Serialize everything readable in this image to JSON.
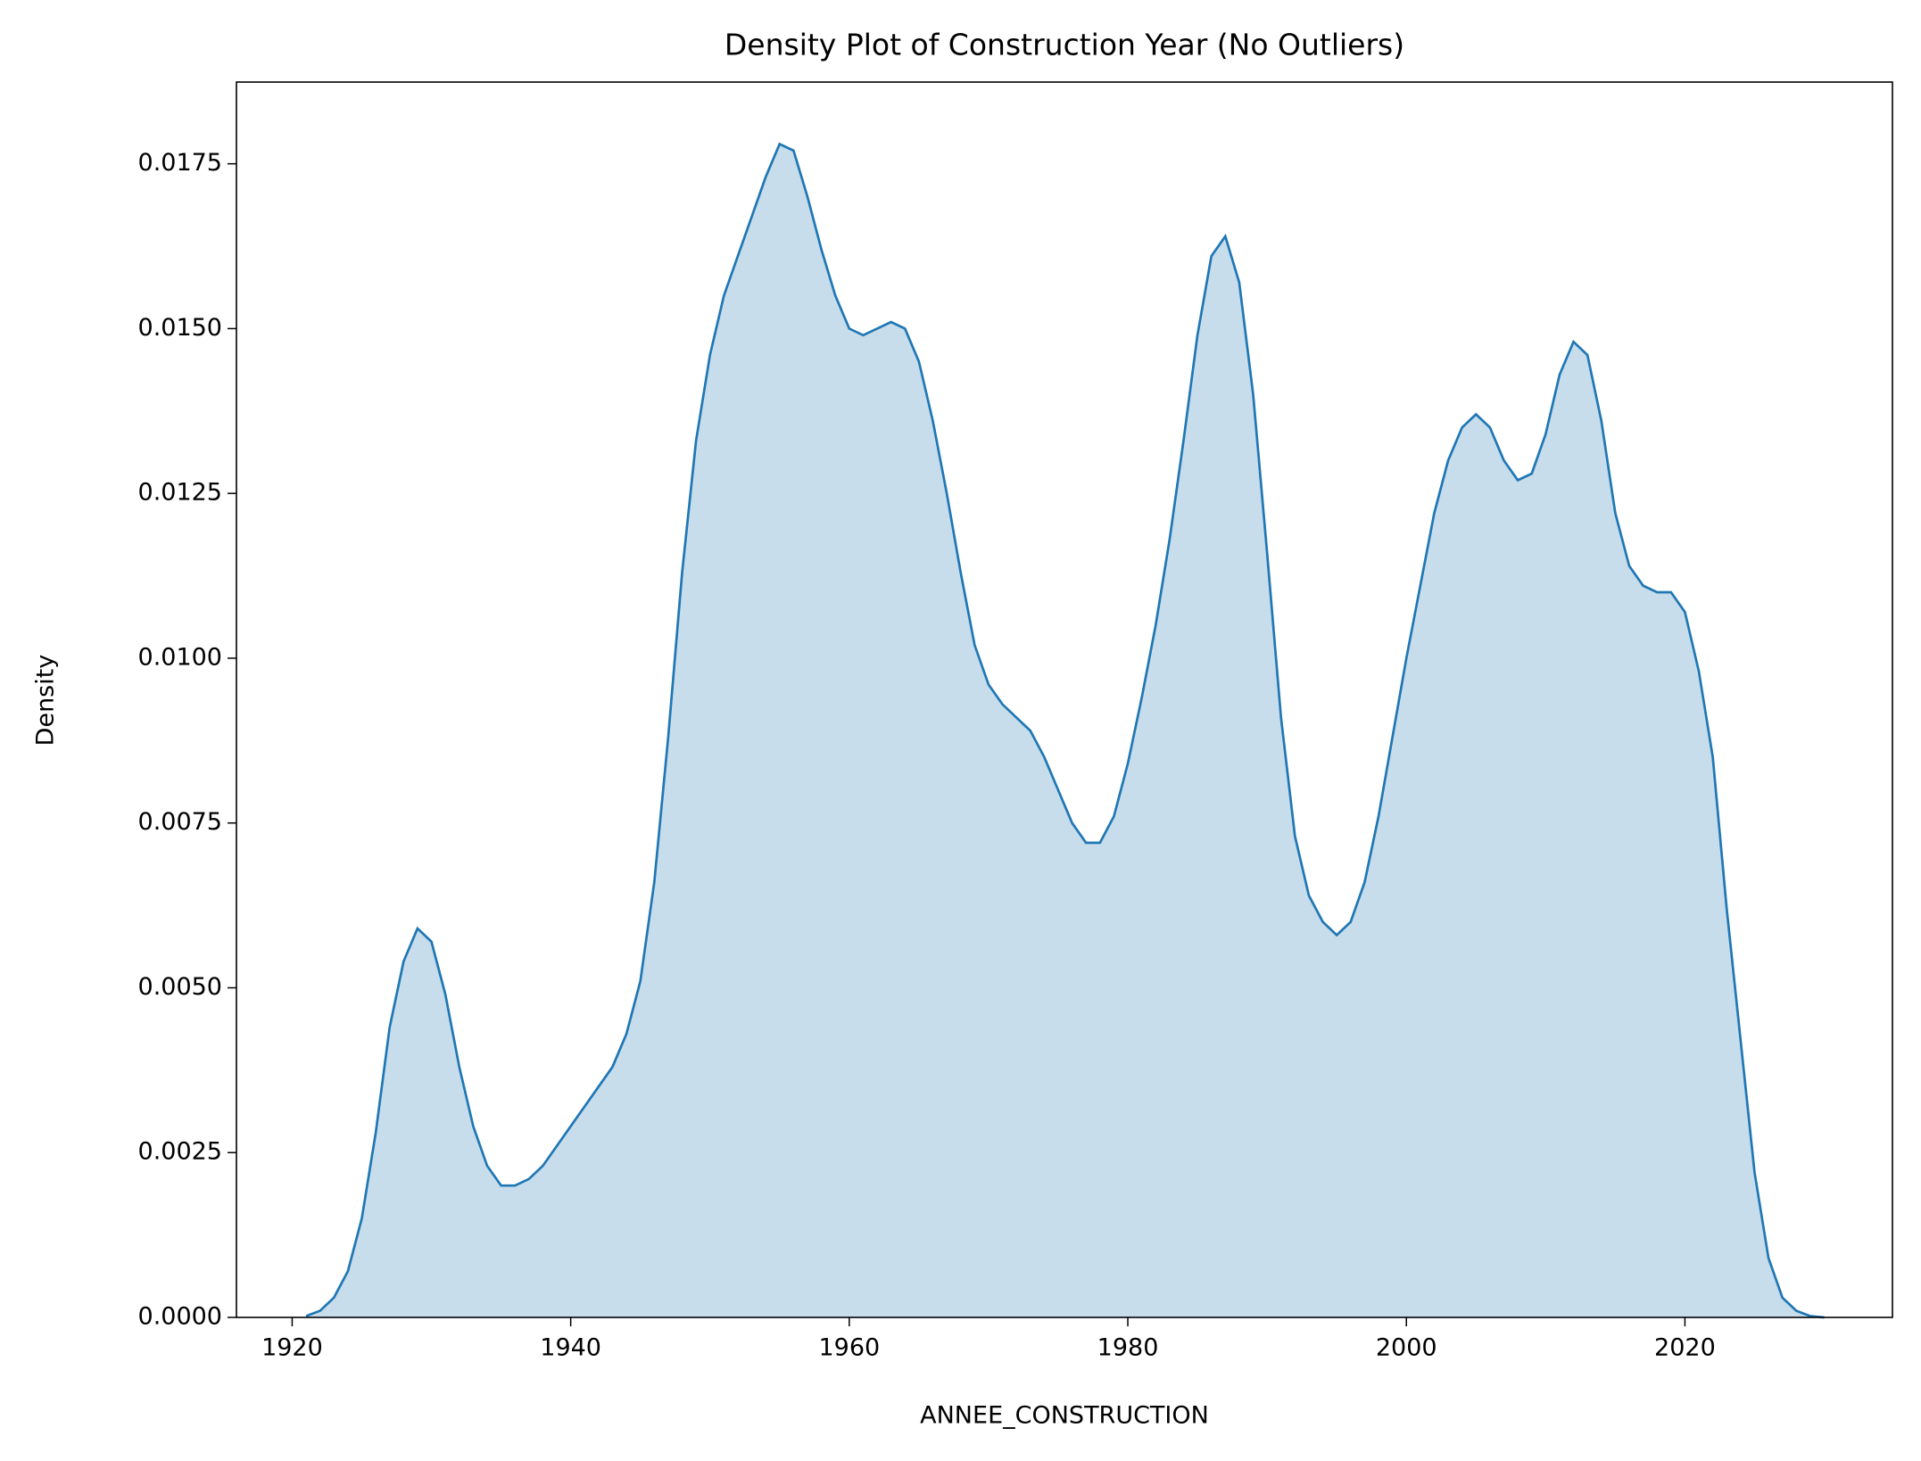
{
  "chart_data": {
    "type": "kde",
    "title": "Density Plot of Construction Year (No Outliers)",
    "x_label": "ANNEE_CONSTRUCTION",
    "y_label": "Density",
    "x": [
      1921,
      1922,
      1923,
      1924,
      1925,
      1926,
      1927,
      1928,
      1929,
      1930,
      1931,
      1932,
      1933,
      1934,
      1935,
      1936,
      1937,
      1938,
      1939,
      1940,
      1941,
      1942,
      1943,
      1944,
      1945,
      1946,
      1947,
      1948,
      1949,
      1950,
      1951,
      1952,
      1953,
      1954,
      1955,
      1956,
      1957,
      1958,
      1959,
      1960,
      1961,
      1962,
      1963,
      1964,
      1965,
      1966,
      1967,
      1968,
      1969,
      1970,
      1971,
      1972,
      1973,
      1974,
      1975,
      1976,
      1977,
      1978,
      1979,
      1980,
      1981,
      1982,
      1983,
      1984,
      1985,
      1986,
      1987,
      1988,
      1989,
      1990,
      1991,
      1992,
      1993,
      1994,
      1995,
      1996,
      1997,
      1998,
      1999,
      2000,
      2001,
      2002,
      2003,
      2004,
      2005,
      2006,
      2007,
      2008,
      2009,
      2010,
      2011,
      2012,
      2013,
      2014,
      2015,
      2016,
      2017,
      2018,
      2019,
      2020,
      2021,
      2022,
      2023,
      2024,
      2025,
      2026,
      2027,
      2028,
      2029,
      2030
    ],
    "series": [
      {
        "name": "density",
        "color": "#1f77b4",
        "fill_opacity": 0.25,
        "values": [
          2e-05,
          0.0001,
          0.0003,
          0.0007,
          0.0015,
          0.0028,
          0.0044,
          0.0054,
          0.0059,
          0.0057,
          0.0049,
          0.0038,
          0.0029,
          0.0023,
          0.002,
          0.002,
          0.0021,
          0.0023,
          0.0026,
          0.0029,
          0.0032,
          0.0035,
          0.0038,
          0.0043,
          0.0051,
          0.0066,
          0.0088,
          0.0113,
          0.0133,
          0.0146,
          0.0155,
          0.0161,
          0.0167,
          0.0173,
          0.0178,
          0.0177,
          0.017,
          0.0162,
          0.0155,
          0.015,
          0.0149,
          0.015,
          0.0151,
          0.015,
          0.0145,
          0.0136,
          0.0125,
          0.0113,
          0.0102,
          0.0096,
          0.0093,
          0.0091,
          0.0089,
          0.0085,
          0.008,
          0.0075,
          0.0072,
          0.0072,
          0.0076,
          0.0084,
          0.0094,
          0.0105,
          0.0118,
          0.0133,
          0.0149,
          0.0161,
          0.0164,
          0.0157,
          0.014,
          0.0116,
          0.0091,
          0.0073,
          0.0064,
          0.006,
          0.0058,
          0.006,
          0.0066,
          0.0076,
          0.0088,
          0.01,
          0.0111,
          0.0122,
          0.013,
          0.0135,
          0.0137,
          0.0135,
          0.013,
          0.0127,
          0.0128,
          0.0134,
          0.0143,
          0.0148,
          0.0146,
          0.0136,
          0.0122,
          0.0114,
          0.0111,
          0.011,
          0.011,
          0.0107,
          0.0098,
          0.0085,
          0.0062,
          0.0042,
          0.0022,
          0.0009,
          0.0003,
          0.0001,
          2e-05,
          0
        ]
      }
    ],
    "xlim": [
      1916,
      2034.9
    ],
    "ylim": [
      0,
      0.01874
    ],
    "xticks": [
      1920,
      1940,
      1960,
      1980,
      2000,
      2020
    ],
    "yticks": [
      {
        "value": 0,
        "label": "0.0000"
      },
      {
        "value": 0.0025,
        "label": "0.0025"
      },
      {
        "value": 0.005,
        "label": "0.0050"
      },
      {
        "value": 0.0075,
        "label": "0.0075"
      },
      {
        "value": 0.01,
        "label": "0.0100"
      },
      {
        "value": 0.0125,
        "label": "0.0125"
      },
      {
        "value": 0.015,
        "label": "0.0150"
      },
      {
        "value": 0.0175,
        "label": "0.0175"
      }
    ],
    "grid": false
  }
}
